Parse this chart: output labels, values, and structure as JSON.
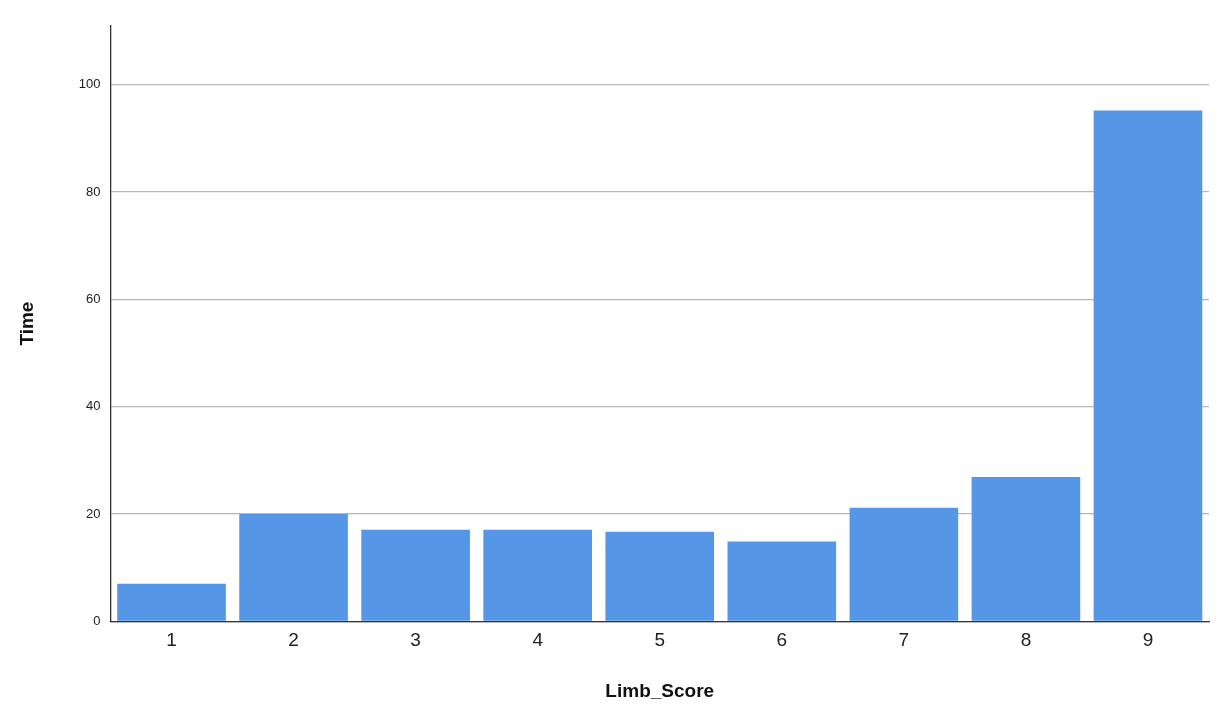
{
  "chart_data": {
    "type": "bar",
    "xlabel": "Limb_Score",
    "ylabel": "Time",
    "categories": [
      "1",
      "2",
      "3",
      "4",
      "5",
      "6",
      "7",
      "8",
      "9"
    ],
    "values": [
      7,
      20,
      17.1,
      17.1,
      16.7,
      14.9,
      21.2,
      26.9,
      95.2
    ],
    "color": "#5596e6",
    "ylim": [
      0,
      111
    ],
    "yticks": [
      0,
      20,
      40,
      60,
      80,
      100
    ],
    "grid": "y",
    "legend": false
  }
}
